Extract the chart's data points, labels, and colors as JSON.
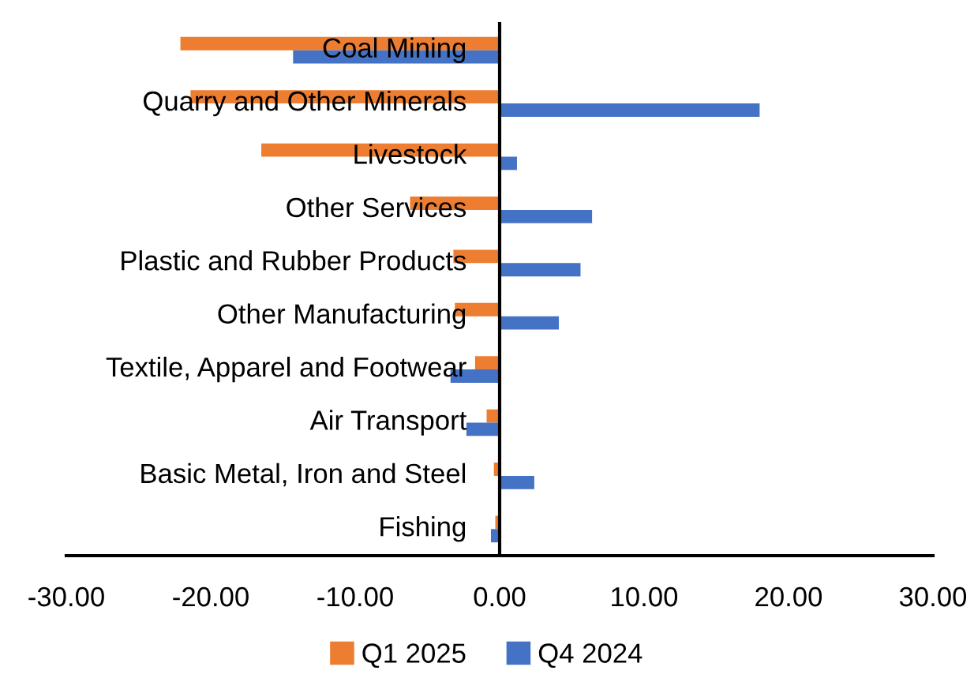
{
  "chart_data": {
    "type": "bar",
    "orientation": "horizontal",
    "categories": [
      "Coal Mining",
      "Quarry and Other Minerals",
      "Livestock",
      "Other Services",
      "Plastic and Rubber Products",
      "Other Manufacturing",
      "Textile, Apparel and Footwear",
      "Air Transport",
      "Basic Metal, Iron and Steel",
      "Fishing"
    ],
    "series": [
      {
        "name": "Q1 2025",
        "color": "#ed7d31",
        "values": [
          -22.1,
          -21.4,
          -16.5,
          -6.2,
          -3.2,
          -3.1,
          -1.7,
          -0.9,
          -0.4,
          -0.3
        ]
      },
      {
        "name": "Q4 2024",
        "color": "#4472c4",
        "values": [
          -14.3,
          18.0,
          1.2,
          6.4,
          5.6,
          4.1,
          -3.4,
          -2.3,
          2.4,
          -0.6
        ]
      }
    ],
    "xlim": [
      -30,
      30
    ],
    "xticks": [
      {
        "value": -30,
        "label": "-30.00"
      },
      {
        "value": -20,
        "label": "-20.00"
      },
      {
        "value": -10,
        "label": "-10.00"
      },
      {
        "value": 0,
        "label": "0.00"
      },
      {
        "value": 10,
        "label": "10.00"
      },
      {
        "value": 20,
        "label": "20.00"
      },
      {
        "value": 30,
        "label": "30.00"
      }
    ],
    "grid": false,
    "legend": "bottom"
  }
}
